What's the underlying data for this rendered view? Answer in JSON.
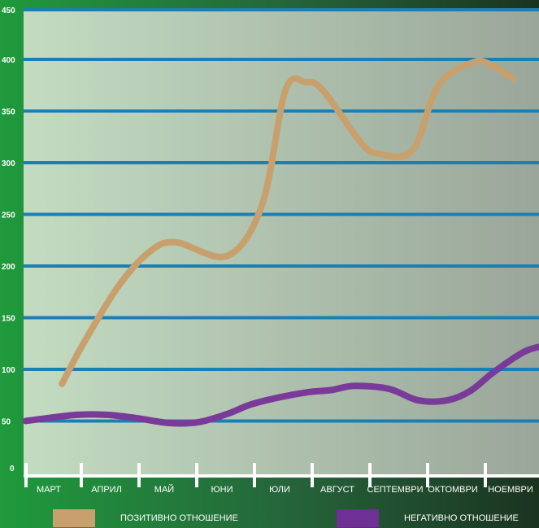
{
  "chart_data": {
    "type": "line",
    "title": "",
    "xlabel": "",
    "ylabel": "",
    "categories": [
      "МАРТ",
      "АПРИЛ",
      "МАЙ",
      "ЮНИ",
      "ЮЛИ",
      "АВГУСТ",
      "СЕПТЕМВРИ",
      "ОКТОМВРИ",
      "НОЕМВРИ"
    ],
    "yticks": [
      0,
      50,
      100,
      150,
      200,
      250,
      300,
      350,
      400,
      450
    ],
    "ylim": [
      0,
      450
    ],
    "grid": true,
    "legend_position": "bottom",
    "series": [
      {
        "name": "ПОЗИТИВНО ОТНОШЕНИЕ",
        "color": "#c8a06e",
        "x": [
          0.23,
          0.6,
          1.2,
          1.75,
          2.2,
          3.1,
          3.7,
          4.1,
          4.45,
          4.75,
          5.4,
          5.7,
          6.3,
          6.75,
          7.35,
          7.65,
          8.05
        ],
        "values": [
          86,
          125,
          180,
          214,
          223,
          210,
          260,
          370,
          378,
          370,
          320,
          309,
          312,
          375,
          397,
          395,
          381
        ]
      },
      {
        "name": "НЕГАТИВНО ОТНОШЕНИЕ",
        "color": "#7a3a9a",
        "x": [
          -0.4,
          0,
          0.5,
          1.0,
          1.5,
          2.1,
          2.6,
          3.1,
          3.5,
          4.0,
          4.5,
          4.9,
          5.3,
          5.9,
          6.4,
          6.9,
          7.3,
          7.7,
          8.2,
          8.5
        ],
        "values": [
          50,
          53,
          56,
          56,
          53,
          48,
          49,
          57,
          66,
          73,
          78,
          80,
          84,
          81,
          70,
          70,
          79,
          97,
          116,
          122
        ]
      }
    ]
  },
  "legend": {
    "positive_label": "ПОЗИТИВНО ОТНОШЕНИЕ",
    "negative_label": "НЕГАТИВНО ОТНОШЕНИЕ"
  },
  "colors": {
    "gridline": "#1a7fb5",
    "positive": "#c8a06e",
    "negative": "#7a3a9a",
    "frame_green": "#1e9a3a",
    "frame_dark": "#1a3320"
  }
}
